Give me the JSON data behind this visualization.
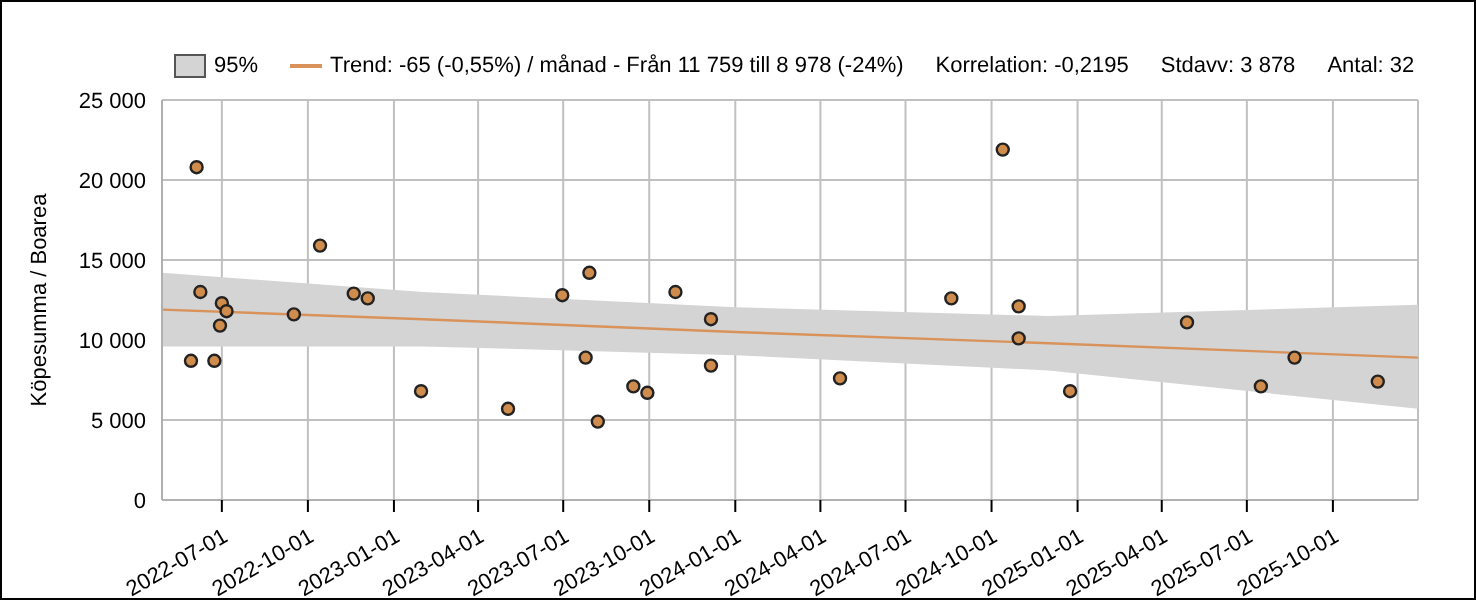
{
  "chart_data": {
    "type": "scatter",
    "ylabel": "Köpesumma / Boarea",
    "legend_title": "95%",
    "xlim": [
      "2022-04-28",
      "2025-12-31"
    ],
    "xticks": [
      "2022-07-01",
      "2022-10-01",
      "2023-01-01",
      "2023-04-01",
      "2023-07-01",
      "2023-10-01",
      "2024-01-01",
      "2024-04-01",
      "2024-07-01",
      "2024-10-01",
      "2025-01-01",
      "2025-04-01",
      "2025-07-01",
      "2025-10-01"
    ],
    "ylim": [
      0,
      25000
    ],
    "yticks": [
      0,
      {
        "value": 5000,
        "label": "5 000"
      },
      {
        "value": 10000,
        "label": "10 000"
      },
      {
        "value": 15000,
        "label": "15 000"
      },
      {
        "value": 20000,
        "label": "20 000"
      },
      {
        "value": 25000,
        "label": "25 000"
      }
    ],
    "grid": true,
    "legend": "top left",
    "annotations": [
      "Korrelation:  -0,2195",
      "Stdavv: 3 878",
      "Antal: 32"
    ],
    "series": [
      {
        "type": "line",
        "name": "Trend: -65 (-0,55%) / månad  -  Från 11 759 till 8 978 (-24%)",
        "color": "#d9925a",
        "x": [
          "2022-04-28",
          "2023-02-01",
          "2024-01-01",
          "2024-12-01",
          "2025-12-31"
        ],
        "marker": "none",
        "values": [
          11900,
          11300,
          10500,
          9800,
          8900
        ],
        "lower": [
          9600,
          9600,
          9050,
          8100,
          5700
        ],
        "upper": [
          14200,
          13000,
          12050,
          11500,
          12200
        ]
      },
      {
        "color": "#d08c4c",
        "marker": "circle",
        "x": [
          "2022-06-04",
          "2022-06-08",
          "2022-05-29",
          "2022-06-23",
          "2022-07-01",
          "2022-07-06",
          "2022-06-29",
          "2022-09-16",
          "2022-10-14",
          "2022-11-19",
          "2022-12-04",
          "2023-01-30",
          "2023-05-03",
          "2023-06-30",
          "2023-07-29",
          "2023-07-25",
          "2023-08-07",
          "2023-09-14",
          "2023-09-29",
          "2023-10-29",
          "2023-12-06",
          "2023-12-06",
          "2024-04-22",
          "2024-08-19",
          "2024-10-13",
          "2024-10-30",
          "2024-10-30",
          "2024-12-24",
          "2025-04-28",
          "2025-07-16",
          "2025-08-21",
          "2025-11-18"
        ],
        "values": [
          20800,
          13000,
          8700,
          8700,
          12300,
          11800,
          10900,
          11600,
          15900,
          12900,
          12600,
          6800,
          5700,
          12800,
          14200,
          8900,
          4900,
          7100,
          6700,
          13000,
          11300,
          8400,
          7600,
          12600,
          21900,
          12100,
          10100,
          6800,
          11100,
          7100,
          8900,
          7400
        ]
      }
    ]
  }
}
